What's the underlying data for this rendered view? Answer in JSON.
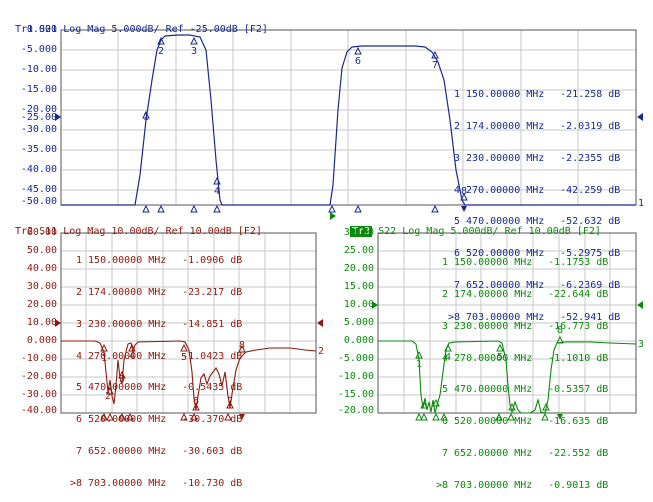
{
  "panels": {
    "tr1": {
      "title_tr": "Tr1",
      "title_rest": "S21 Log Mag 5.000dB/ Ref -25.00dB [F2]",
      "color": "#1a2a8c",
      "yticks": [
        "0.000",
        "-5.000",
        "-10.00",
        "-15.00",
        "-20.00",
        "-25.00",
        "-30.00",
        "-35.00",
        "-40.00",
        "-45.00",
        "-50.00"
      ],
      "ref_value": "-25.00",
      "trace_end_label": "1",
      "markers": [
        {
          "n": "1",
          "freq": "150.00000 MHz",
          "val": "-21.258 dB"
        },
        {
          "n": "2",
          "freq": "174.00000 MHz",
          "val": "-2.0319 dB"
        },
        {
          "n": "3",
          "freq": "230.00000 MHz",
          "val": "-2.2355 dB"
        },
        {
          "n": "4",
          "freq": "270.00000 MHz",
          "val": "-42.259 dB"
        },
        {
          "n": "5",
          "freq": "470.00000 MHz",
          "val": "-52.632 dB"
        },
        {
          "n": "6",
          "freq": "520.00000 MHz",
          "val": "-5.2975 dB"
        },
        {
          "n": "7",
          "freq": "652.00000 MHz",
          "val": "-6.2369 dB"
        },
        {
          "n": ">8",
          "freq": "703.00000 MHz",
          "val": "-52.941 dB"
        }
      ]
    },
    "tr2": {
      "title_tr": "Tr2",
      "title_rest": "S11 Log Mag 10.00dB/ Ref 10.00dB [F2]",
      "color": "#8c1a10",
      "yticks": [
        "60.00",
        "50.00",
        "40.00",
        "30.00",
        "20.00",
        "10.00",
        "0.000",
        "-10.00",
        "-20.00",
        "-30.00",
        "-40.00"
      ],
      "trace_end_label": "2",
      "markers": [
        {
          "n": "1",
          "freq": "150.00000 MHz",
          "val": "-1.0906 dB"
        },
        {
          "n": "2",
          "freq": "174.00000 MHz",
          "val": "-23.217 dB"
        },
        {
          "n": "3",
          "freq": "230.00000 MHz",
          "val": "-14.851 dB"
        },
        {
          "n": "4",
          "freq": "270.00000 MHz",
          "val": "-1.0423 dB"
        },
        {
          "n": "5",
          "freq": "470.00000 MHz",
          "val": "-0.5435 dB"
        },
        {
          "n": "6",
          "freq": "520.00000 MHz",
          "val": "-30.370 dB"
        },
        {
          "n": "7",
          "freq": "652.00000 MHz",
          "val": "-30.603 dB"
        },
        {
          "n": ">8",
          "freq": "703.00000 MHz",
          "val": "-10.730 dB"
        }
      ]
    },
    "tr3": {
      "title_tr": "Tr3",
      "title_rest": "S22 Log Mag 5.000dB/ Ref 10.00dB [F2]",
      "color": "#0a8a0a",
      "yticks": [
        "30.00",
        "25.00",
        "20.00",
        "15.00",
        "10.00",
        "5.000",
        "0.000",
        "-5.000",
        "-10.00",
        "-15.00",
        "-20.00"
      ],
      "trace_end_label": "3",
      "markers": [
        {
          "n": "1",
          "freq": "150.00000 MHz",
          "val": "-1.1753 dB"
        },
        {
          "n": "2",
          "freq": "174.00000 MHz",
          "val": "-22.644 dB"
        },
        {
          "n": "3",
          "freq": "230.00000 MHz",
          "val": "-16.773 dB"
        },
        {
          "n": "4",
          "freq": "270.00000 MHz",
          "val": "-1.1010 dB"
        },
        {
          "n": "5",
          "freq": "470.00000 MHz",
          "val": "-0.5357 dB"
        },
        {
          "n": "6",
          "freq": "520.00000 MHz",
          "val": "-16.635 dB"
        },
        {
          "n": "7",
          "freq": "652.00000 MHz",
          "val": "-22.552 dB"
        },
        {
          "n": ">8",
          "freq": "703.00000 MHz",
          "val": "-0.9013 dB"
        }
      ]
    }
  },
  "colors": {
    "grid": "#bfbfbf",
    "frame": "#555555"
  }
}
